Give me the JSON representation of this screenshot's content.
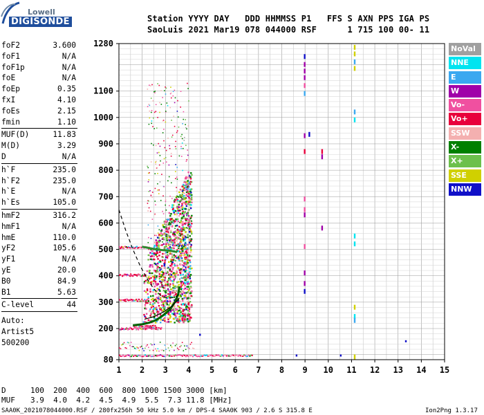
{
  "logo": {
    "brand": "Lowell",
    "name": "DIGISONDE"
  },
  "header": {
    "line1": "Station YYYY DAY   DDD HHMMSS P1   FFS S AXN PPS IGA PS",
    "line2": "SaoLuis 2021 Mar19 078 044000 RSF      1 715 100 00- 11"
  },
  "params": {
    "group1": [
      {
        "k": "foF2",
        "v": "3.600"
      },
      {
        "k": "foF1",
        "v": "N/A"
      },
      {
        "k": "foF1p",
        "v": "N/A"
      },
      {
        "k": "foE",
        "v": "N/A"
      },
      {
        "k": "foEp",
        "v": "0.35"
      },
      {
        "k": "fxI",
        "v": "4.10"
      },
      {
        "k": "foEs",
        "v": "2.15"
      },
      {
        "k": "fmin",
        "v": "1.10"
      }
    ],
    "group2": [
      {
        "k": "MUF(D)",
        "v": "11.83"
      },
      {
        "k": "M(D)",
        "v": "3.29"
      },
      {
        "k": "D",
        "v": "N/A"
      }
    ],
    "group3": [
      {
        "k": "h`F",
        "v": "235.0"
      },
      {
        "k": "h`F2",
        "v": "235.0"
      },
      {
        "k": "h`E",
        "v": "N/A"
      },
      {
        "k": "h`Es",
        "v": "105.0"
      }
    ],
    "group4": [
      {
        "k": "hmF2",
        "v": "316.2"
      },
      {
        "k": "hmF1",
        "v": "N/A"
      },
      {
        "k": "hmE",
        "v": "110.0"
      },
      {
        "k": "yF2",
        "v": "105.6"
      },
      {
        "k": "yF1",
        "v": "N/A"
      },
      {
        "k": "yE",
        "v": "20.0"
      },
      {
        "k": "B0",
        "v": "84.9"
      },
      {
        "k": "B1",
        "v": "5.63"
      }
    ],
    "group5": [
      {
        "k": "C-level",
        "v": "44"
      }
    ],
    "auto": [
      "Auto:",
      "Artist5",
      "500200"
    ]
  },
  "legend": [
    {
      "label": "NoVal",
      "color": "#a0a0a0"
    },
    {
      "label": "NNE",
      "color": "#00e4f0"
    },
    {
      "label": "E",
      "color": "#3aa8f0"
    },
    {
      "label": "W",
      "color": "#a000a8"
    },
    {
      "label": "Vo-",
      "color": "#f050a0"
    },
    {
      "label": "Vo+",
      "color": "#e8003c"
    },
    {
      "label": "SSW",
      "color": "#f4b0b0"
    },
    {
      "label": "X-",
      "color": "#008000"
    },
    {
      "label": "X+",
      "color": "#6cc04c"
    },
    {
      "label": "SSE",
      "color": "#d0d000"
    },
    {
      "label": "NNW",
      "color": "#1010c8"
    }
  ],
  "footer": {
    "row1_label": "D",
    "row1_values": "100  200  400  600  800 1000 1500 3000 [km]",
    "row2_label": "MUF",
    "row2_values": "3.9  4.0  4.2  4.5  4.9  5.5  7.3 11.8 [MHz]",
    "file_line": "SAA0K_2021078044000.RSF / 280fx256h 50 kHz 5.0 km / DPS-4 SAA0K 903 / 2.6 S 315.8 E",
    "version": "Ion2Png 1.3.17"
  },
  "chart_data": {
    "type": "scatter",
    "xlim": [
      1,
      15
    ],
    "ylim": [
      80,
      1280
    ],
    "x_ticks": [
      1,
      2,
      3,
      4,
      5,
      6,
      7,
      8,
      9,
      10,
      11,
      12,
      13,
      14,
      15
    ],
    "y_ticks": [
      80,
      200,
      300,
      400,
      500,
      600,
      700,
      800,
      900,
      1000,
      1100,
      1280
    ],
    "grid": true,
    "legend_placement": "right",
    "trace": {
      "main_echo": {
        "x": [
          1.6,
          2.0,
          2.3,
          2.6,
          2.9,
          3.2,
          3.4,
          3.55,
          3.6
        ],
        "y": [
          212,
          216,
          222,
          232,
          250,
          272,
          300,
          330,
          360
        ]
      },
      "profile_fit": {
        "x": [
          2.1,
          2.5,
          2.9,
          3.3,
          3.6
        ],
        "y": [
          235,
          245,
          262,
          286,
          316
        ]
      },
      "f2_upper": {
        "x": [
          2.0,
          2.3,
          2.6,
          2.9,
          3.2,
          3.5
        ],
        "y": [
          510,
          505,
          500,
          497,
          495,
          490
        ]
      },
      "dashed_profile": {
        "x": [
          1.0,
          1.3,
          1.6,
          1.9,
          2.2,
          2.5,
          2.8,
          3.1,
          3.4,
          3.6
        ],
        "y": [
          650,
          570,
          500,
          440,
          390,
          350,
          325,
          315,
          318,
          330
        ]
      },
      "vertical_streaks": [
        {
          "x": 8.95,
          "y": [
            1240,
            1210,
            1185,
            1160,
            1130,
            1100,
            940,
            880,
            700,
            660,
            640,
            520,
            420,
            380,
            350
          ]
        },
        {
          "x": 11.1,
          "y": [
            1275,
            1250,
            1220,
            1195,
            1030,
            1000,
            560,
            530,
            290,
            255,
            240,
            100
          ]
        },
        {
          "x": 9.7,
          "y": [
            880,
            860,
            590
          ]
        },
        {
          "x": 9.15,
          "y": [
            945
          ]
        }
      ],
      "isolated": [
        {
          "x": 13.3,
          "y": 155
        },
        {
          "x": 10.5,
          "y": 100
        },
        {
          "x": 4.45,
          "y": 180
        },
        {
          "x": 8.6,
          "y": 100
        }
      ]
    }
  }
}
